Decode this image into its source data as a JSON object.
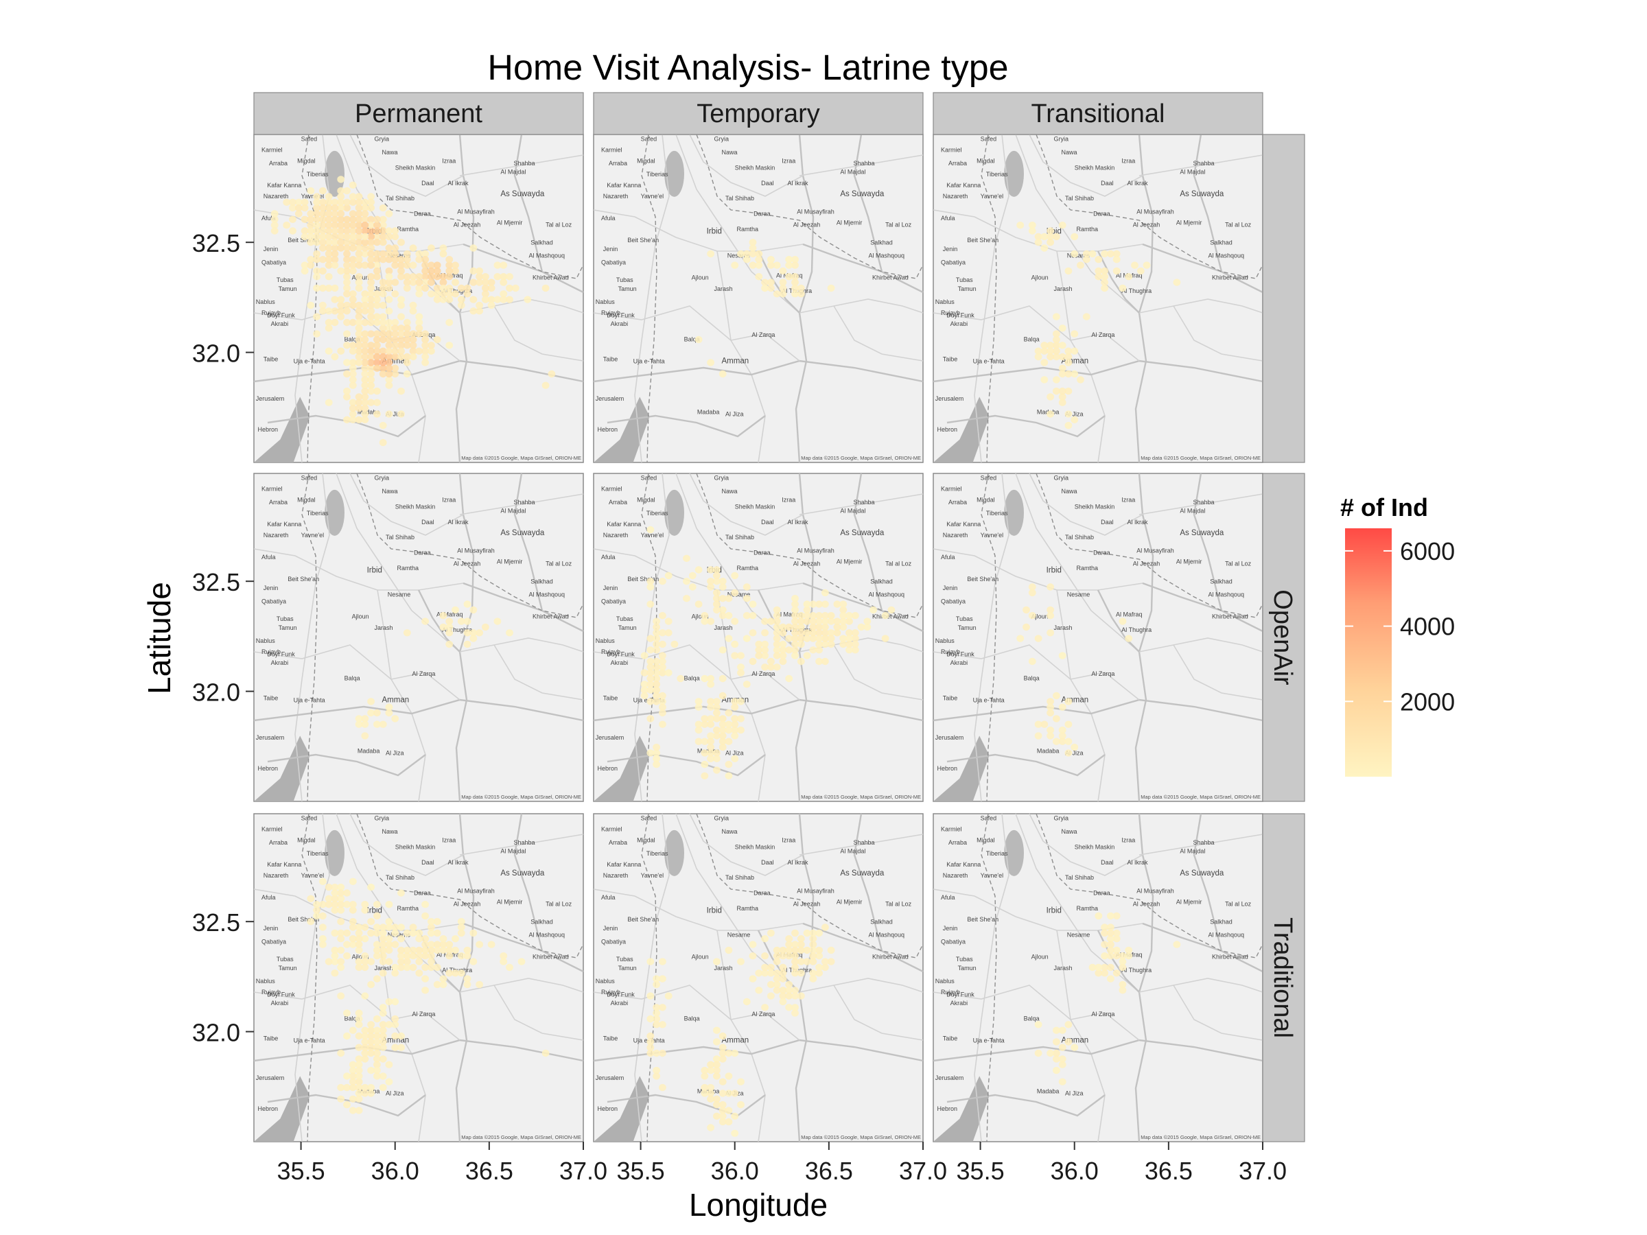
{
  "chart_data": {
    "type": "heatmap",
    "title": "Home Visit Analysis- Latrine type",
    "xlabel": "Longitude",
    "ylabel": "Latitude",
    "legend": {
      "title": "# of Ind",
      "ticks": [
        2000,
        4000,
        6000
      ],
      "range": [
        0,
        6600
      ],
      "colors": [
        "#fff4c2",
        "#ffd39a",
        "#ff9d74",
        "#ff4a45"
      ],
      "placement": "right"
    },
    "xlim": [
      35.25,
      37.0
    ],
    "ylim": [
      31.5,
      32.99
    ],
    "x_ticks": [
      35.5,
      36.0,
      36.5,
      37.0
    ],
    "y_ticks": [
      32.0,
      32.5
    ],
    "x_tick_labels": [
      "35.5",
      "36.0",
      "36.5",
      "37.0"
    ],
    "y_tick_labels": [
      "32.0",
      "32.5"
    ],
    "columns": [
      "Permanent",
      "Temporary",
      "Transitional"
    ],
    "rows": [
      "",
      "OpenAir",
      "Traditional"
    ],
    "map_credit": "Map data ©2015 Google, Mapa GISrael, ORION-ME",
    "map_labels": [
      {
        "text": "Safed",
        "lon": 35.5,
        "lat": 32.96
      },
      {
        "text": "Gryia",
        "lon": 35.89,
        "lat": 32.96
      },
      {
        "text": "Nawa",
        "lon": 35.93,
        "lat": 32.9
      },
      {
        "text": "Karmiel",
        "lon": 35.29,
        "lat": 32.91
      },
      {
        "text": "Migdal",
        "lon": 35.48,
        "lat": 32.86
      },
      {
        "text": "Arraba",
        "lon": 35.33,
        "lat": 32.85
      },
      {
        "text": "Tiberias",
        "lon": 35.53,
        "lat": 32.8
      },
      {
        "text": "Izraa",
        "lon": 36.25,
        "lat": 32.86
      },
      {
        "text": "Shahba",
        "lon": 36.63,
        "lat": 32.85
      },
      {
        "text": "Sheikh Maskin",
        "lon": 36.0,
        "lat": 32.83
      },
      {
        "text": "Al Majdal",
        "lon": 36.56,
        "lat": 32.81
      },
      {
        "text": "Daal",
        "lon": 36.14,
        "lat": 32.76
      },
      {
        "text": "Al Ikrak",
        "lon": 36.28,
        "lat": 32.76
      },
      {
        "text": "Nazareth",
        "lon": 35.3,
        "lat": 32.7
      },
      {
        "text": "Kafar Kanna",
        "lon": 35.32,
        "lat": 32.75
      },
      {
        "text": "Yavne'el",
        "lon": 35.5,
        "lat": 32.7
      },
      {
        "text": "As Suwayda",
        "lon": 36.56,
        "lat": 32.71
      },
      {
        "text": "Tal Shihab",
        "lon": 35.95,
        "lat": 32.69
      },
      {
        "text": "Daraa",
        "lon": 36.1,
        "lat": 32.62
      },
      {
        "text": "Al Musayfirah",
        "lon": 36.33,
        "lat": 32.63
      },
      {
        "text": "Afula",
        "lon": 35.29,
        "lat": 32.6
      },
      {
        "text": "Al Jeezah",
        "lon": 36.31,
        "lat": 32.57
      },
      {
        "text": "Al Mjemir",
        "lon": 36.54,
        "lat": 32.58
      },
      {
        "text": "Tal al Loz",
        "lon": 36.8,
        "lat": 32.57
      },
      {
        "text": "Irbid",
        "lon": 35.85,
        "lat": 32.54
      },
      {
        "text": "Ramtha",
        "lon": 36.01,
        "lat": 32.55
      },
      {
        "text": "Beit She'an",
        "lon": 35.43,
        "lat": 32.5
      },
      {
        "text": "Salkhad",
        "lon": 36.72,
        "lat": 32.49
      },
      {
        "text": "Jenin",
        "lon": 35.3,
        "lat": 32.46
      },
      {
        "text": "Al Mashqouq",
        "lon": 36.71,
        "lat": 32.43
      },
      {
        "text": "Nesame",
        "lon": 35.96,
        "lat": 32.43
      },
      {
        "text": "Qabatiya",
        "lon": 35.29,
        "lat": 32.4
      },
      {
        "text": "Ajloun",
        "lon": 35.77,
        "lat": 32.33
      },
      {
        "text": "Al Mafraq",
        "lon": 36.22,
        "lat": 32.34
      },
      {
        "text": "Khirbet Awad",
        "lon": 36.73,
        "lat": 32.33
      },
      {
        "text": "Tubas",
        "lon": 35.37,
        "lat": 32.32
      },
      {
        "text": "Tamun",
        "lon": 35.38,
        "lat": 32.28
      },
      {
        "text": "Jarash",
        "lon": 35.89,
        "lat": 32.28
      },
      {
        "text": "Al Thughra",
        "lon": 36.25,
        "lat": 32.27
      },
      {
        "text": "Nablus",
        "lon": 35.26,
        "lat": 32.22
      },
      {
        "text": "Rujayb",
        "lon": 35.29,
        "lat": 32.17
      },
      {
        "text": "Duyl Funk",
        "lon": 35.32,
        "lat": 32.16
      },
      {
        "text": "Akrabi",
        "lon": 35.34,
        "lat": 32.12
      },
      {
        "text": "Al Zarqa",
        "lon": 36.09,
        "lat": 32.07
      },
      {
        "text": "Balqa",
        "lon": 35.73,
        "lat": 32.05
      },
      {
        "text": "Taibe",
        "lon": 35.3,
        "lat": 31.96
      },
      {
        "text": "Uja e-Tahta",
        "lon": 35.46,
        "lat": 31.95
      },
      {
        "text": "Amman",
        "lon": 35.93,
        "lat": 31.95
      },
      {
        "text": "Jerusalem",
        "lon": 35.26,
        "lat": 31.78
      },
      {
        "text": "Madaba",
        "lon": 35.8,
        "lat": 31.72
      },
      {
        "text": "Al Jiza",
        "lon": 35.95,
        "lat": 31.71
      },
      {
        "text": "Hebron",
        "lon": 35.27,
        "lat": 31.64
      }
    ],
    "series": [
      {
        "name": "Permanent",
        "weights": [
          [
            35.5,
            32.65,
            0.1
          ],
          [
            35.55,
            32.4,
            0.08
          ],
          [
            35.6,
            32.3,
            0.06
          ],
          [
            35.6,
            32.2,
            0.05
          ],
          [
            35.65,
            32.1,
            0.06
          ],
          [
            35.7,
            32.0,
            0.07
          ],
          [
            35.75,
            31.9,
            0.08
          ],
          [
            35.8,
            31.8,
            0.07
          ],
          [
            35.85,
            31.7,
            0.06
          ],
          [
            35.95,
            31.6,
            0.05
          ],
          [
            36.4,
            32.2,
            0.05
          ],
          [
            36.6,
            32.25,
            0.06
          ],
          [
            36.8,
            32.3,
            0.05
          ],
          [
            36.82,
            31.9,
            0.05
          ],
          [
            36.8,
            31.85,
            0.04
          ]
        ],
        "blobs": [
          {
            "lon": 35.62,
            "lat": 32.62,
            "slon": 0.1,
            "slat": 0.06,
            "n": 90,
            "m": 0.12
          },
          {
            "lon": 35.74,
            "lat": 32.6,
            "slon": 0.1,
            "slat": 0.06,
            "n": 120,
            "m": 0.18
          },
          {
            "lon": 35.86,
            "lat": 32.55,
            "slon": 0.05,
            "slat": 0.04,
            "n": 40,
            "m": 0.42
          },
          {
            "lon": 35.7,
            "lat": 32.45,
            "slon": 0.1,
            "slat": 0.07,
            "n": 90,
            "m": 0.15
          },
          {
            "lon": 35.95,
            "lat": 32.4,
            "slon": 0.12,
            "slat": 0.08,
            "n": 110,
            "m": 0.18
          },
          {
            "lon": 36.22,
            "lat": 32.36,
            "slon": 0.07,
            "slat": 0.05,
            "n": 50,
            "m": 0.32
          },
          {
            "lon": 36.42,
            "lat": 32.3,
            "slon": 0.12,
            "slat": 0.05,
            "n": 60,
            "m": 0.1
          },
          {
            "lon": 35.8,
            "lat": 32.2,
            "slon": 0.1,
            "slat": 0.08,
            "n": 80,
            "m": 0.1
          },
          {
            "lon": 35.92,
            "lat": 32.02,
            "slon": 0.1,
            "slat": 0.07,
            "n": 110,
            "m": 0.2
          },
          {
            "lon": 35.93,
            "lat": 31.96,
            "slon": 0.06,
            "slat": 0.04,
            "n": 40,
            "m": 0.48
          },
          {
            "lon": 36.05,
            "lat": 32.05,
            "slon": 0.1,
            "slat": 0.05,
            "n": 60,
            "m": 0.18
          },
          {
            "lon": 35.82,
            "lat": 31.78,
            "slon": 0.06,
            "slat": 0.07,
            "n": 50,
            "m": 0.08
          }
        ]
      },
      {
        "name": "Temporary",
        "weights": [
          [
            35.88,
            32.45,
            0.02
          ],
          [
            36.0,
            32.4,
            0.02
          ],
          [
            35.82,
            32.05,
            0.02
          ],
          [
            35.88,
            31.95,
            0.02
          ],
          [
            35.95,
            31.9,
            0.02
          ],
          [
            36.5,
            32.3,
            0.02
          ]
        ],
        "blobs": [
          {
            "lon": 36.25,
            "lat": 32.33,
            "slon": 0.07,
            "slat": 0.05,
            "n": 30,
            "m": 0.03
          },
          {
            "lon": 36.1,
            "lat": 32.42,
            "slon": 0.05,
            "slat": 0.04,
            "n": 12,
            "m": 0.02
          }
        ]
      },
      {
        "name": "Transitional",
        "weights": [
          [
            35.87,
            32.52,
            0.02
          ],
          [
            35.95,
            32.58,
            0.02
          ],
          [
            36.25,
            32.3,
            0.02
          ],
          [
            36.55,
            32.32,
            0.02
          ],
          [
            35.7,
            32.58,
            0.02
          ],
          [
            36.1,
            32.45,
            0.02
          ]
        ],
        "blobs": [
          {
            "lon": 35.9,
            "lat": 32.0,
            "slon": 0.06,
            "slat": 0.06,
            "n": 40,
            "m": 0.04
          },
          {
            "lon": 35.95,
            "lat": 31.8,
            "slon": 0.04,
            "slat": 0.08,
            "n": 20,
            "m": 0.03
          },
          {
            "lon": 36.15,
            "lat": 32.4,
            "slon": 0.1,
            "slat": 0.05,
            "n": 25,
            "m": 0.03
          },
          {
            "lon": 35.88,
            "lat": 32.52,
            "slon": 0.06,
            "slat": 0.04,
            "n": 18,
            "m": 0.02
          }
        ]
      },
      {
        "name": "Permanent / OpenAir",
        "weights": [
          [
            35.88,
            31.95,
            0.03
          ],
          [
            35.85,
            31.85,
            0.02
          ],
          [
            36.3,
            32.28,
            0.02
          ]
        ],
        "blobs": [
          {
            "lon": 36.35,
            "lat": 32.28,
            "slon": 0.12,
            "slat": 0.04,
            "n": 25,
            "m": 0.02
          },
          {
            "lon": 35.9,
            "lat": 31.9,
            "slon": 0.05,
            "slat": 0.06,
            "n": 14,
            "m": 0.02
          }
        ]
      },
      {
        "name": "Temporary / OpenAir",
        "weights": [
          [
            35.88,
            32.55,
            0.04
          ],
          [
            35.95,
            32.5,
            0.03
          ]
        ],
        "blobs": [
          {
            "lon": 36.4,
            "lat": 32.28,
            "slon": 0.16,
            "slat": 0.06,
            "n": 160,
            "m": 0.05
          },
          {
            "lon": 35.58,
            "lat": 32.05,
            "slon": 0.03,
            "slat": 0.18,
            "n": 70,
            "m": 0.03
          },
          {
            "lon": 35.92,
            "lat": 31.85,
            "slon": 0.06,
            "slat": 0.1,
            "n": 80,
            "m": 0.04
          },
          {
            "lon": 35.9,
            "lat": 32.45,
            "slon": 0.07,
            "slat": 0.08,
            "n": 40,
            "m": 0.03
          },
          {
            "lon": 36.15,
            "lat": 32.15,
            "slon": 0.1,
            "slat": 0.05,
            "n": 30,
            "m": 0.03
          }
        ]
      },
      {
        "name": "Transitional / OpenAir",
        "weights": [
          [
            36.25,
            32.33,
            0.02
          ],
          [
            36.3,
            32.25,
            0.02
          ]
        ],
        "blobs": [
          {
            "lon": 35.9,
            "lat": 31.85,
            "slon": 0.06,
            "slat": 0.08,
            "n": 25,
            "m": 0.02
          },
          {
            "lon": 35.8,
            "lat": 32.4,
            "slon": 0.08,
            "slat": 0.1,
            "n": 14,
            "m": 0.02
          }
        ]
      },
      {
        "name": "Permanent / Traditional",
        "weights": [
          [
            35.62,
            32.4,
            0.02
          ],
          [
            36.6,
            32.3,
            0.02
          ],
          [
            36.8,
            31.9,
            0.02
          ]
        ],
        "blobs": [
          {
            "lon": 36.1,
            "lat": 32.35,
            "slon": 0.18,
            "slat": 0.08,
            "n": 140,
            "m": 0.04
          },
          {
            "lon": 35.8,
            "lat": 32.45,
            "slon": 0.1,
            "slat": 0.1,
            "n": 70,
            "m": 0.03
          },
          {
            "lon": 35.88,
            "lat": 31.95,
            "slon": 0.07,
            "slat": 0.1,
            "n": 80,
            "m": 0.04
          },
          {
            "lon": 35.8,
            "lat": 31.75,
            "slon": 0.05,
            "slat": 0.06,
            "n": 25,
            "m": 0.03
          },
          {
            "lon": 35.65,
            "lat": 32.6,
            "slon": 0.08,
            "slat": 0.05,
            "n": 30,
            "m": 0.02
          }
        ]
      },
      {
        "name": "Temporary / Traditional",
        "weights": [
          [
            35.6,
            32.25,
            0.02
          ],
          [
            35.62,
            32.1,
            0.02
          ]
        ],
        "blobs": [
          {
            "lon": 36.3,
            "lat": 32.35,
            "slon": 0.12,
            "slat": 0.07,
            "n": 90,
            "m": 0.04
          },
          {
            "lon": 36.25,
            "lat": 32.18,
            "slon": 0.05,
            "slat": 0.05,
            "n": 25,
            "m": 0.03
          },
          {
            "lon": 35.92,
            "lat": 31.75,
            "slon": 0.05,
            "slat": 0.12,
            "n": 55,
            "m": 0.03
          },
          {
            "lon": 35.58,
            "lat": 32.0,
            "slon": 0.03,
            "slat": 0.14,
            "n": 25,
            "m": 0.02
          }
        ]
      },
      {
        "name": "Transitional / Traditional",
        "weights": [
          [
            36.55,
            32.4,
            0.02
          ],
          [
            36.1,
            32.3,
            0.02
          ]
        ],
        "blobs": [
          {
            "lon": 36.2,
            "lat": 32.3,
            "slon": 0.05,
            "slat": 0.08,
            "n": 28,
            "m": 0.02
          },
          {
            "lon": 35.92,
            "lat": 31.92,
            "slon": 0.06,
            "slat": 0.06,
            "n": 20,
            "m": 0.02
          },
          {
            "lon": 36.18,
            "lat": 32.45,
            "slon": 0.04,
            "slat": 0.04,
            "n": 8,
            "m": 0.02
          }
        ]
      }
    ]
  }
}
